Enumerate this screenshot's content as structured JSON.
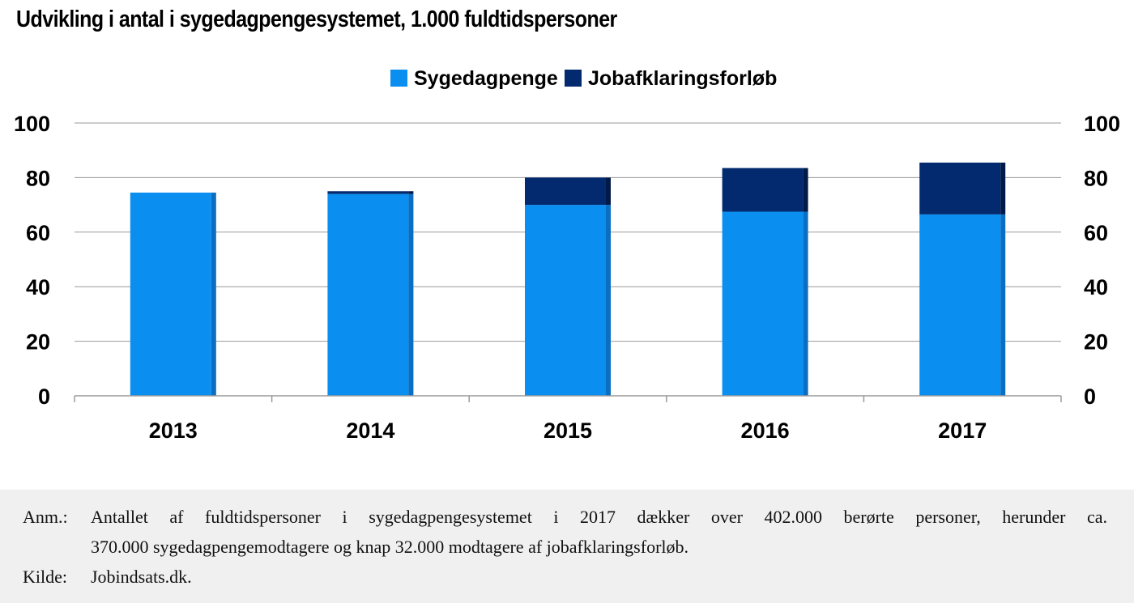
{
  "title": "Udvikling i antal i sygedagpengesystemet,  1.000 fuldtidspersoner",
  "colors": {
    "sygedagpenge": "#0a8ef0",
    "sygedagpenge_side": "#0a6fc2",
    "jobafklaring": "#032a6e",
    "jobafklaring_side": "#021a48",
    "grid": "#9a9a9a",
    "footer_bg": "#f0f0f0"
  },
  "chart_data": {
    "type": "bar",
    "stacked": true,
    "categories": [
      "2013",
      "2014",
      "2015",
      "2016",
      "2017"
    ],
    "series": [
      {
        "name": "Sygedagpenge",
        "values": [
          74.5,
          74,
          70,
          67.5,
          66.5
        ]
      },
      {
        "name": "Jobafklaringsforløb",
        "values": [
          0,
          1,
          10,
          16,
          19
        ]
      }
    ],
    "ylim": [
      0,
      100
    ],
    "yticks": [
      "0",
      "20",
      "40",
      "60",
      "80",
      "100"
    ],
    "ytick_values": [
      0,
      20,
      40,
      60,
      80,
      100
    ],
    "secondary_y_axis": true,
    "grid": true,
    "legend_position": "top-center",
    "xlabel": "",
    "ylabel": ""
  },
  "footer": {
    "anm_label": "Anm.:",
    "anm_line1": "Antallet af fuldtidspersoner i sygedagpengesystemet i 2017 dækker over 402.000 berørte personer, herunder ca.",
    "anm_line2": "370.000 sygedagpengemodtagere og knap 32.000 modtagere af jobafklaringsforløb.",
    "kilde_label": "Kilde:",
    "kilde_text": "Jobindsats.dk."
  }
}
